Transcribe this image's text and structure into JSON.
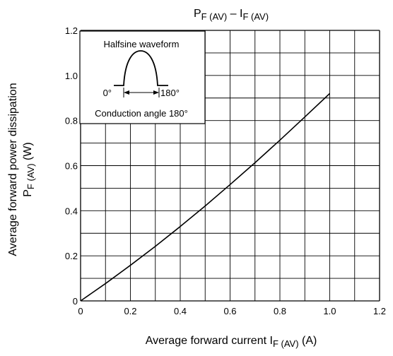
{
  "chart_data": {
    "type": "line",
    "title": {
      "main": "P",
      "main_sub": "F (AV)",
      "sep": " – ",
      "second": "I",
      "second_sub": "F (AV)"
    },
    "xlabel": {
      "text": "Average forward current",
      "sym": "I",
      "sym_sub": "F (AV)",
      "unit": "(A)"
    },
    "ylabel": {
      "line1": "Average forward power dissipation",
      "sym": "P",
      "sym_sub": "F (AV)",
      "unit": "(W)"
    },
    "xlim": [
      0,
      1.2
    ],
    "ylim": [
      0,
      1.2
    ],
    "grid": true,
    "x_ticks": [
      "0",
      "0.2",
      "0.4",
      "0.6",
      "0.8",
      "1.0",
      "1.2"
    ],
    "y_ticks": [
      "0",
      "0.2",
      "0.4",
      "0.6",
      "0.8",
      "1.0",
      "1.2"
    ],
    "series": [
      {
        "x": [
          0,
          0.1,
          0.2,
          0.3,
          0.4,
          0.5,
          0.6,
          0.7,
          0.8,
          0.9,
          1.0
        ],
        "values": [
          0,
          0.077,
          0.158,
          0.242,
          0.33,
          0.421,
          0.516,
          0.613,
          0.713,
          0.816,
          0.92
        ]
      }
    ],
    "inset": {
      "title": "Halfsine waveform",
      "left_label": "0°",
      "right_label": "180°",
      "caption": "Conduction angle 180°"
    }
  }
}
